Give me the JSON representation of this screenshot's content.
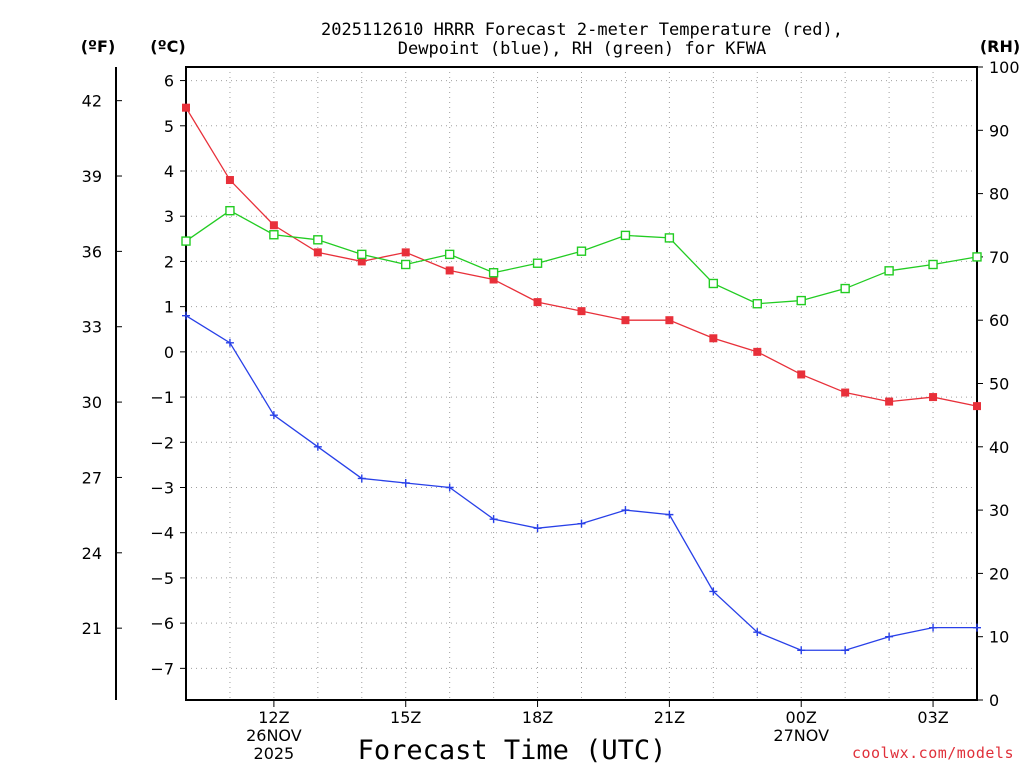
{
  "chart_data": {
    "type": "line",
    "title": [
      "2025112610 HRRR Forecast 2-meter Temperature (red),",
      "Dewpoint (blue), RH (green) for KFWA"
    ],
    "xlabel": "Forecast Time (UTC)",
    "left_outer_label": "(ºF)",
    "left_inner_label": "(ºC)",
    "right_label": "(RH)",
    "x_hours": [
      10,
      11,
      12,
      13,
      14,
      15,
      16,
      17,
      18,
      19,
      20,
      21,
      22,
      23,
      24,
      25,
      26,
      27,
      28
    ],
    "x_range": [
      10,
      28
    ],
    "x_ticks": [
      {
        "hour": 12,
        "lines": [
          "12Z",
          "26NOV",
          "2025"
        ]
      },
      {
        "hour": 15,
        "lines": [
          "15Z"
        ]
      },
      {
        "hour": 18,
        "lines": [
          "18Z"
        ]
      },
      {
        "hour": 21,
        "lines": [
          "21Z"
        ]
      },
      {
        "hour": 24,
        "lines": [
          "00Z",
          "27NOV"
        ]
      },
      {
        "hour": 27,
        "lines": [
          "03Z"
        ]
      }
    ],
    "celsius_range": [
      -7.7,
      6.3
    ],
    "celsius_ticks": [
      -7,
      -6,
      -5,
      -4,
      -3,
      -2,
      -1,
      0,
      1,
      2,
      3,
      4,
      5,
      6
    ],
    "fahrenheit_ticks": [
      21,
      24,
      27,
      30,
      33,
      36,
      39,
      42
    ],
    "rh_range": [
      0,
      100
    ],
    "rh_ticks": [
      0,
      10,
      20,
      30,
      40,
      50,
      60,
      70,
      80,
      90,
      100
    ],
    "series": [
      {
        "name": "Temperature",
        "unit": "C",
        "color": "#e8303a",
        "marker": "filled-square",
        "values": [
          5.4,
          3.8,
          2.8,
          2.2,
          2.0,
          2.2,
          1.8,
          1.6,
          1.1,
          0.9,
          0.7,
          0.7,
          0.3,
          0.0,
          -0.5,
          -0.9,
          -1.1,
          -1.0,
          -1.2
        ]
      },
      {
        "name": "Dewpoint",
        "unit": "C",
        "color": "#2840e8",
        "marker": "plus",
        "values": [
          0.8,
          0.2,
          -1.4,
          -2.1,
          -2.8,
          -2.9,
          -3.0,
          -3.7,
          -3.9,
          -3.8,
          -3.5,
          -3.6,
          -5.3,
          -6.2,
          -6.6,
          -6.6,
          -6.3,
          -6.1,
          -6.1
        ]
      },
      {
        "name": "RH",
        "unit": "%",
        "color": "#22cc22",
        "marker": "hollow-square",
        "values": [
          72.5,
          77.3,
          73.5,
          72.7,
          70.4,
          68.8,
          70.4,
          67.5,
          69.0,
          70.9,
          73.4,
          73.0,
          65.8,
          62.6,
          63.1,
          65.0,
          67.8,
          68.8,
          70.0
        ]
      }
    ],
    "grid": true
  },
  "credit": "coolwx.com/models",
  "colors": {
    "axis": "#000000",
    "grid": "#a0a0a0",
    "background": "#ffffff"
  }
}
